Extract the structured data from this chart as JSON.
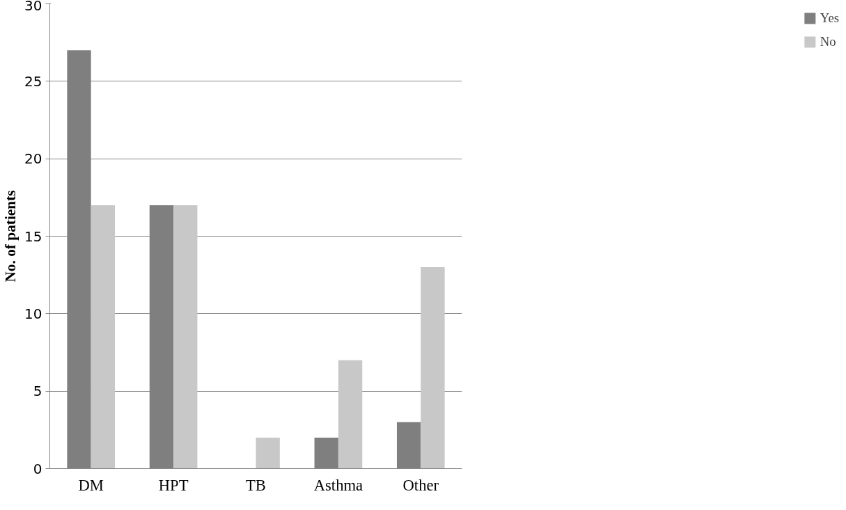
{
  "chart_data": {
    "type": "bar",
    "ylabel": "No. of patients",
    "categories": [
      "DM",
      "HPT",
      "TB",
      "Asthma",
      "Other"
    ],
    "series": [
      {
        "name": "Yes",
        "color": "#7f7f7f",
        "values": [
          27,
          17,
          0,
          2,
          3
        ]
      },
      {
        "name": "No",
        "color": "#c8c8c8",
        "values": [
          17,
          17,
          2,
          7,
          13
        ]
      }
    ],
    "ylim": [
      0,
      30
    ],
    "yticks": [
      0,
      5,
      10,
      15,
      20,
      25,
      30
    ],
    "grid": "y",
    "legend": "right"
  }
}
